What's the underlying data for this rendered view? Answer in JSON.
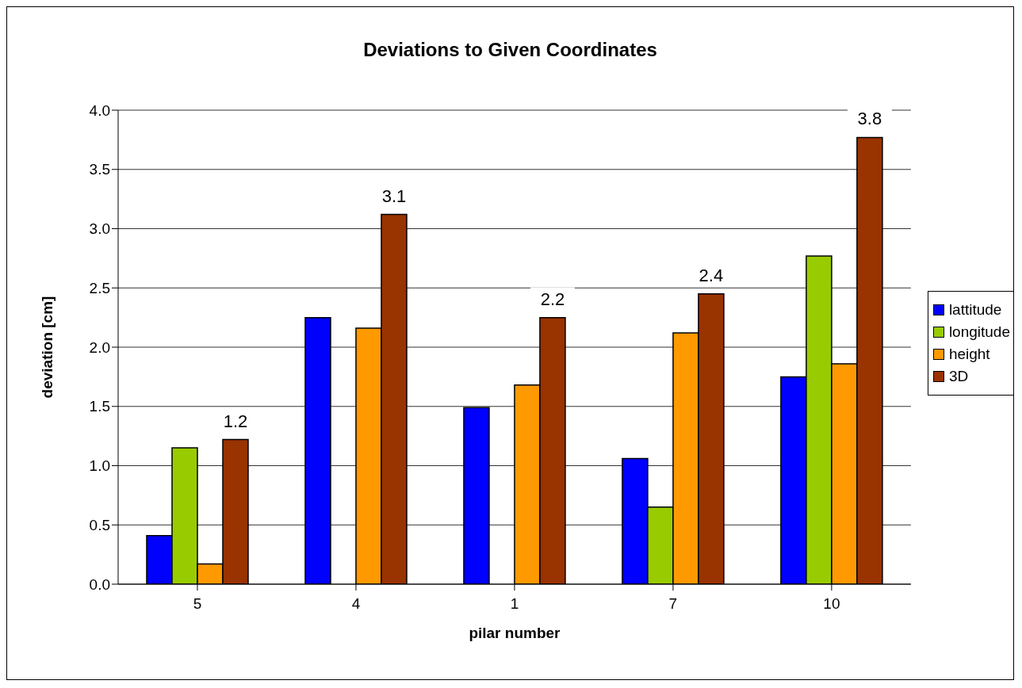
{
  "chart_data": {
    "type": "bar",
    "title": "Deviations to Given Coordinates",
    "xlabel": "pilar number",
    "ylabel": "deviation  [cm]",
    "categories": [
      "5",
      "4",
      "1",
      "7",
      "10"
    ],
    "series": [
      {
        "name": "lattitude",
        "color": "#0000ff",
        "values": [
          0.41,
          2.25,
          1.49,
          1.06,
          1.75
        ]
      },
      {
        "name": "longitude",
        "color": "#99cc00",
        "values": [
          1.15,
          null,
          null,
          0.65,
          2.77
        ]
      },
      {
        "name": "height",
        "color": "#ff9900",
        "values": [
          0.17,
          2.16,
          1.68,
          2.12,
          1.86
        ]
      },
      {
        "name": "3D",
        "color": "#993300",
        "values": [
          1.22,
          3.12,
          2.25,
          2.45,
          3.77
        ],
        "value_labels": [
          "1.2",
          "3.1",
          "2.2",
          "2.4",
          "3.8"
        ]
      }
    ],
    "ylim": [
      0,
      4
    ],
    "yticks": [
      {
        "value": 0,
        "label": "0.0"
      },
      {
        "value": 0.5,
        "label": "0.5"
      },
      {
        "value": 1,
        "label": "1.0"
      },
      {
        "value": 1.5,
        "label": "1.5"
      },
      {
        "value": 2,
        "label": "2.0"
      },
      {
        "value": 2.5,
        "label": "2.5"
      },
      {
        "value": 3,
        "label": "3.0"
      },
      {
        "value": 3.5,
        "label": "3.5"
      },
      {
        "value": 4,
        "label": "4.0"
      }
    ],
    "grid": "y",
    "legend": "right"
  }
}
